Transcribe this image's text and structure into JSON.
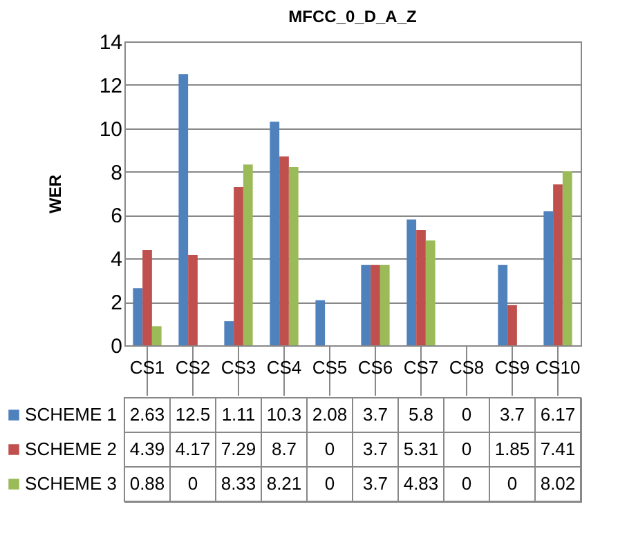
{
  "chart_data": {
    "type": "bar",
    "title": "MFCC_0_D_A_Z",
    "ylabel": "WER",
    "categories": [
      "CS1",
      "CS2",
      "CS3",
      "CS4",
      "CS5",
      "CS6",
      "CS7",
      "CS8",
      "CS9",
      "CS10"
    ],
    "series": [
      {
        "name": "SCHEME 1",
        "color": "#4f81bd",
        "values": [
          2.63,
          12.5,
          1.11,
          10.3,
          2.08,
          3.7,
          5.8,
          0,
          3.7,
          6.17
        ]
      },
      {
        "name": "SCHEME 2",
        "color": "#c0504d",
        "values": [
          4.39,
          4.17,
          7.29,
          8.7,
          0,
          3.7,
          5.31,
          0,
          1.85,
          7.41
        ]
      },
      {
        "name": "SCHEME 3",
        "color": "#9bbb59",
        "values": [
          0.88,
          0,
          8.33,
          8.21,
          0,
          3.7,
          4.83,
          0,
          0,
          8.02
        ]
      }
    ],
    "ylim": [
      0,
      14
    ],
    "yticks": [
      0,
      2,
      4,
      6,
      8,
      10,
      12,
      14
    ],
    "grid": "y",
    "legend": "bottom",
    "data_labels": true
  }
}
